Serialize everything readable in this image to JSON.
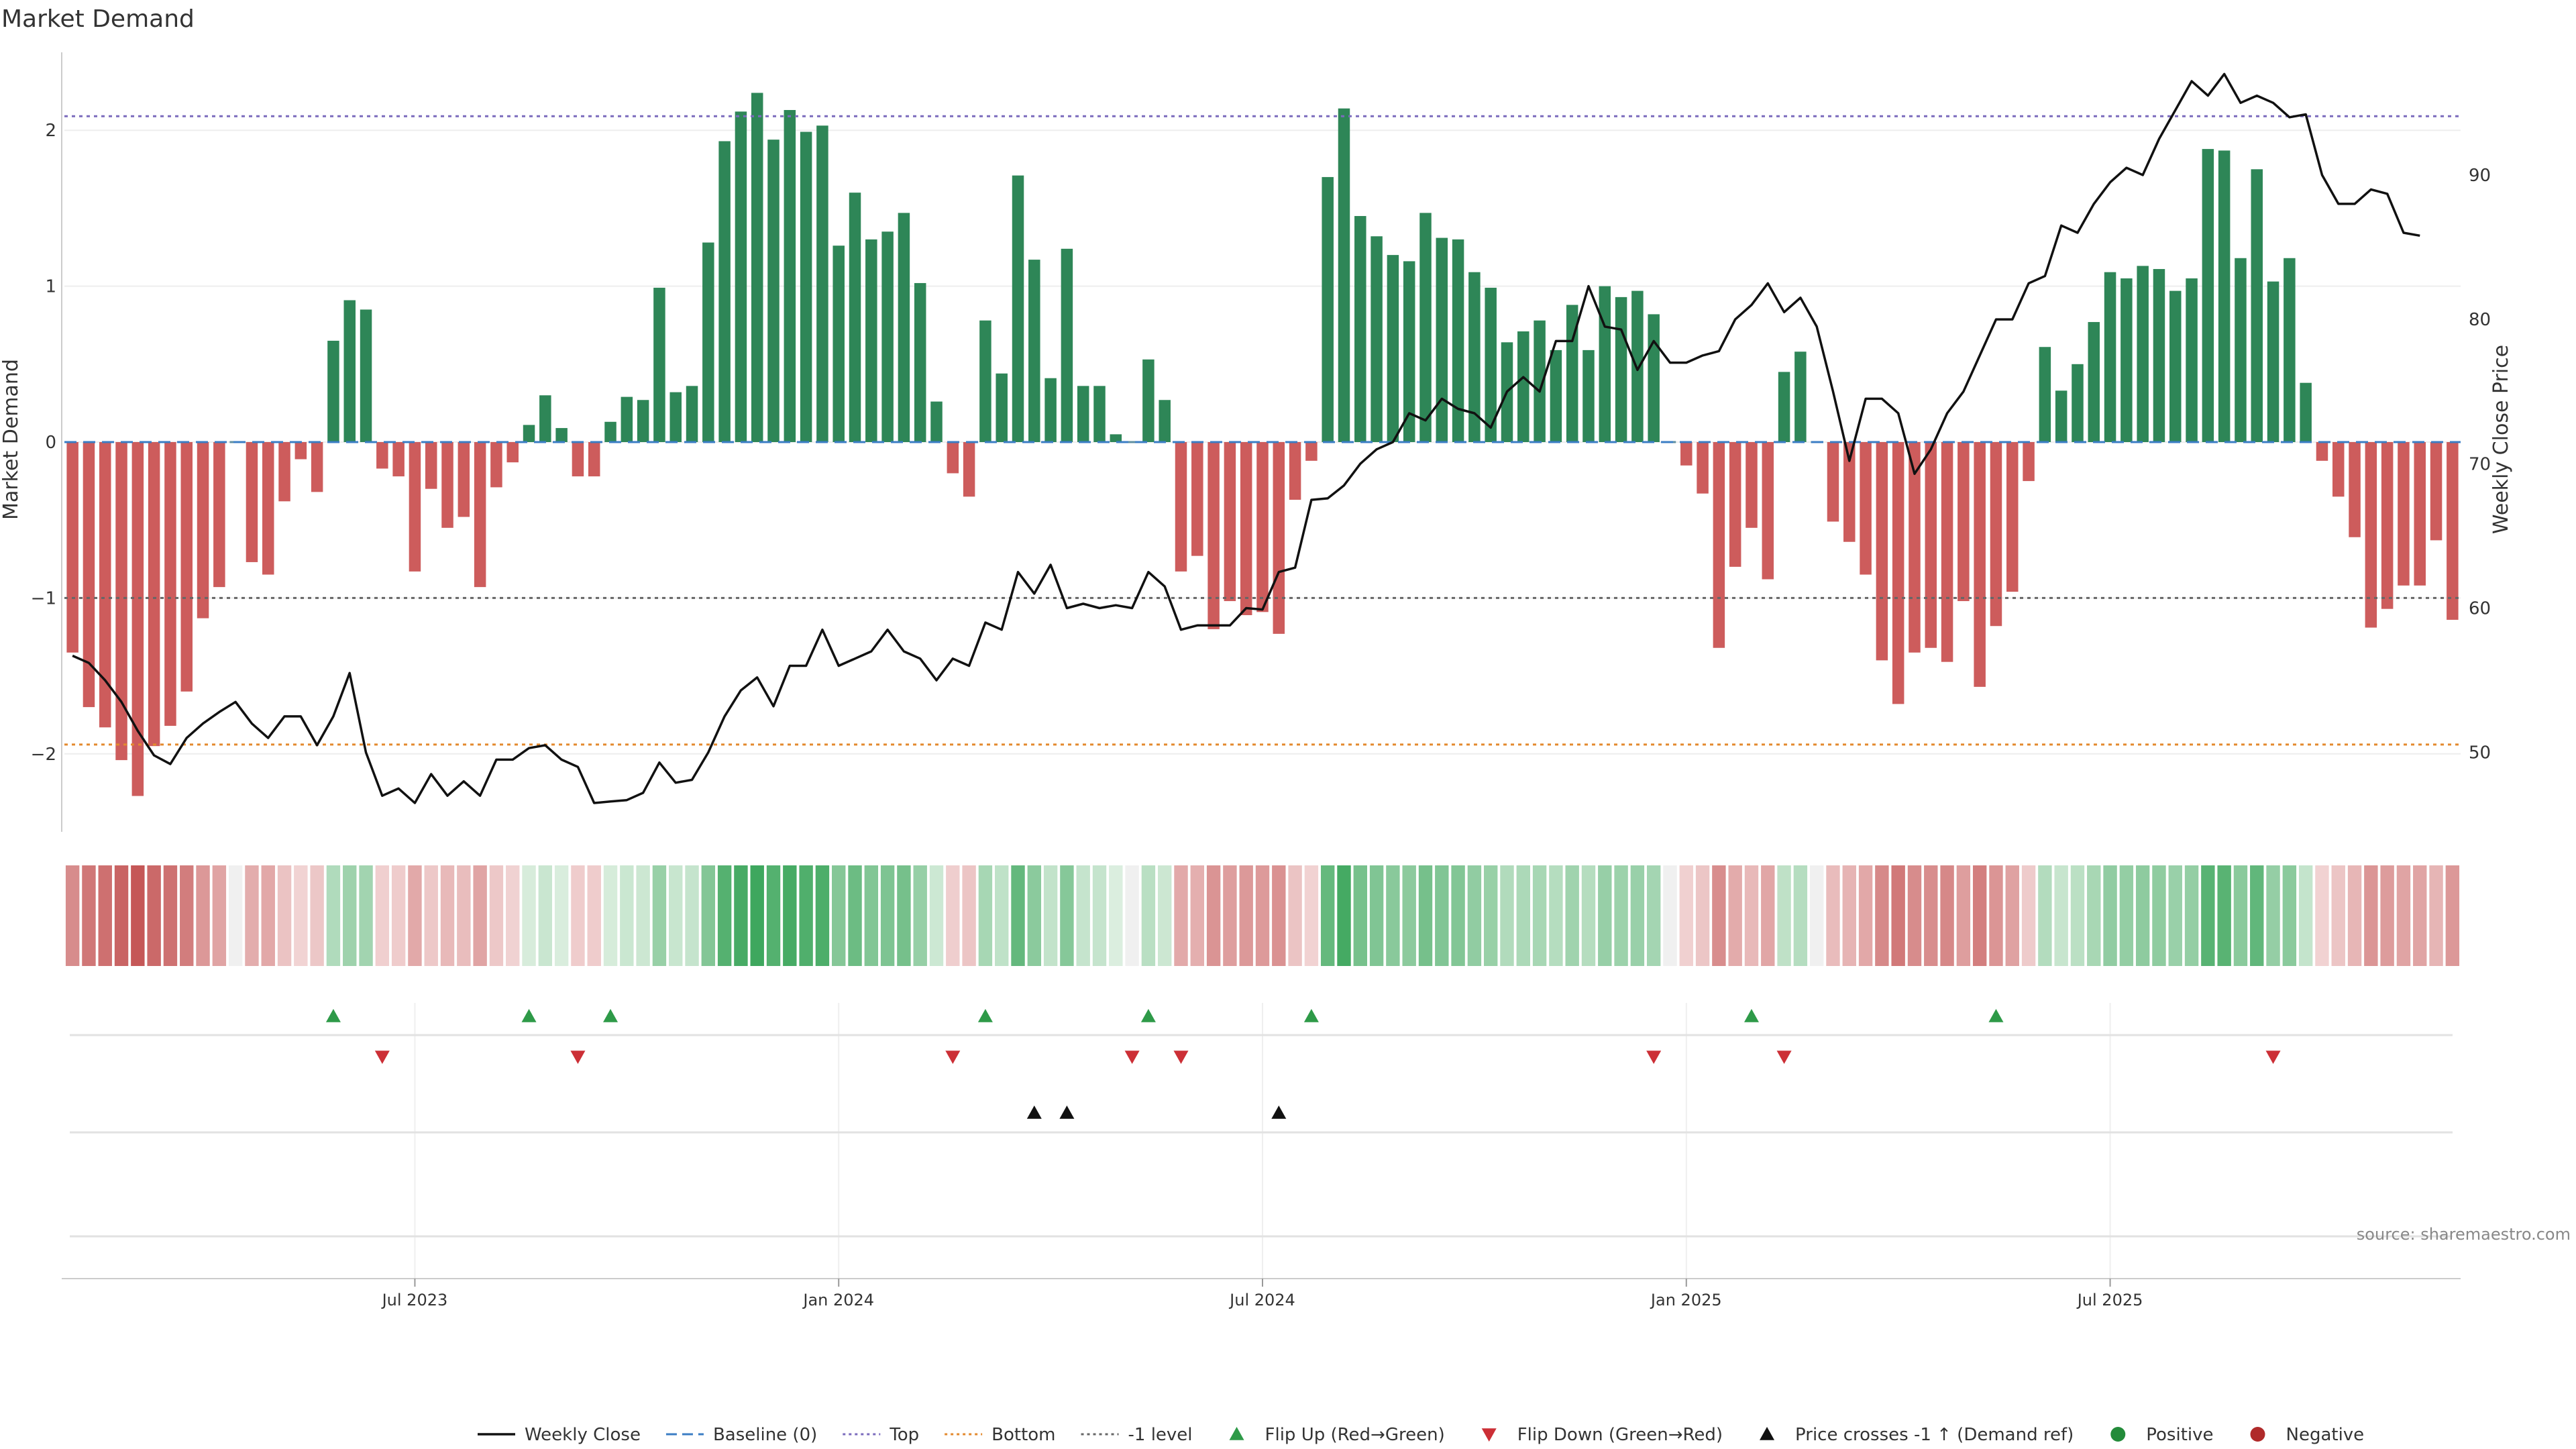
{
  "chart_data": {
    "type": "bar",
    "title": "Market Demand",
    "ylabel_left": "Market Demand",
    "ylabel_right": "Weekly Close Price",
    "source": "source: sharemaestro.com",
    "y_left_range": [
      -2.5,
      2.5
    ],
    "y_left_ticks": [
      "2",
      "1",
      "0",
      "−1",
      "−2"
    ],
    "y_left_tick_values": [
      2,
      1,
      0,
      -1,
      -2
    ],
    "y_right_range": [
      44.5,
      98.5
    ],
    "y_right_ticks": [
      "90",
      "80",
      "70",
      "60",
      "50"
    ],
    "y_right_tick_values": [
      90,
      80,
      70,
      60,
      50
    ],
    "x_ticks": [
      "Jul 2023",
      "Jan 2024",
      "Jul 2024",
      "Jan 2025",
      "Jul 2025"
    ],
    "x_tick_week_index": [
      21.5,
      47.5,
      73.5,
      99.5,
      125.5
    ],
    "reference_lines": {
      "top": 2.09,
      "bottom": -1.94,
      "minus_one": -1.0,
      "baseline": 0
    },
    "demand": [
      -1.35,
      -1.7,
      -1.83,
      -2.04,
      -2.27,
      -1.95,
      -1.82,
      -1.6,
      -1.13,
      -0.93,
      0,
      -0.77,
      -0.85,
      -0.38,
      -0.11,
      -0.32,
      0.65,
      0.91,
      0.85,
      -0.17,
      -0.22,
      -0.83,
      -0.3,
      -0.55,
      -0.48,
      -0.93,
      -0.29,
      -0.13,
      0.11,
      0.3,
      0.09,
      -0.22,
      -0.22,
      0.13,
      0.29,
      0.27,
      0.99,
      0.32,
      0.36,
      1.28,
      1.93,
      2.12,
      2.24,
      1.94,
      2.13,
      1.99,
      2.03,
      1.26,
      1.6,
      1.3,
      1.35,
      1.47,
      1.02,
      0.26,
      -0.2,
      -0.35,
      0.78,
      0.44,
      1.71,
      1.17,
      0.41,
      1.24,
      0.36,
      0.36,
      0.05,
      0,
      0.53,
      0.27,
      -0.83,
      -0.73,
      -1.2,
      -1.02,
      -1.11,
      -1.09,
      -1.23,
      -0.37,
      -0.12,
      1.7,
      2.14,
      1.45,
      1.32,
      1.2,
      1.16,
      1.47,
      1.31,
      1.3,
      1.09,
      0.99,
      0.64,
      0.71,
      0.78,
      0.59,
      0.88,
      0.59,
      1.0,
      0.93,
      0.97,
      0.82,
      0,
      -0.15,
      -0.33,
      -1.32,
      -0.8,
      -0.55,
      -0.88,
      0.45,
      0.58,
      0,
      -0.51,
      -0.64,
      -0.85,
      -1.4,
      -1.68,
      -1.35,
      -1.32,
      -1.41,
      -1.02,
      -1.57,
      -1.18,
      -0.96,
      -0.25,
      0.61,
      0.33,
      0.5,
      0.77,
      1.09,
      1.05,
      1.13,
      1.11,
      0.97,
      1.05,
      1.88,
      1.87,
      1.18,
      1.75,
      1.03,
      1.18,
      0.38,
      -0.12,
      -0.35,
      -0.61,
      -1.19,
      -1.07,
      -0.92,
      -0.92,
      -0.63,
      -1.14
    ],
    "weekly_close": [
      56.7,
      56.2,
      55.0,
      53.5,
      51.5,
      49.8,
      49.2,
      51.0,
      52.0,
      52.8,
      53.5,
      52.0,
      51.0,
      52.5,
      52.5,
      50.5,
      52.5,
      55.5,
      50.0,
      47.0,
      47.5,
      46.5,
      48.5,
      47.0,
      48.0,
      47.0,
      49.5,
      49.5,
      50.3,
      50.5,
      49.5,
      49.0,
      46.5,
      46.6,
      46.7,
      47.2,
      49.3,
      47.9,
      48.1,
      50.0,
      52.5,
      54.3,
      55.2,
      53.2,
      56.0,
      56.0,
      58.5,
      56.0,
      56.5,
      57.0,
      58.5,
      57.0,
      56.5,
      55.0,
      56.5,
      56.0,
      59.0,
      58.5,
      62.5,
      61.0,
      63.0,
      60.0,
      60.3,
      60.0,
      60.2,
      60.0,
      62.5,
      61.5,
      58.5,
      58.8,
      58.8,
      58.8,
      60.0,
      59.9,
      62.5,
      62.8,
      67.5,
      67.6,
      68.5,
      70.0,
      71.0,
      71.5,
      73.5,
      73.0,
      74.5,
      73.8,
      73.5,
      72.5,
      75.0,
      76.0,
      75.0,
      78.5,
      78.5,
      82.3,
      79.5,
      79.3,
      76.5,
      78.5,
      77.0,
      77.0,
      77.5,
      77.8,
      80.0,
      81.0,
      82.5,
      80.5,
      81.5,
      79.5,
      75.0,
      70.2,
      74.5,
      74.5,
      73.5,
      69.3,
      71.0,
      73.5,
      75.0,
      77.5,
      80.0,
      80.0,
      82.5,
      83.0,
      86.5,
      86.0,
      88.0,
      89.5,
      90.5,
      90.0,
      92.5,
      94.5,
      96.5,
      95.5,
      97.0,
      95.0,
      95.5,
      95.0,
      94.0,
      94.2,
      90.0,
      88.0,
      88.0,
      89.0,
      88.7,
      86.0,
      85.8
    ],
    "flip_up_weeks": [
      16,
      28,
      33,
      56,
      66,
      76,
      103,
      118
    ],
    "flip_down_weeks": [
      19,
      31,
      54,
      65,
      68,
      97,
      105,
      135
    ],
    "price_cross_weeks": [
      59,
      61,
      74
    ],
    "legend": [
      {
        "label": "Weekly Close",
        "symbol": "line",
        "color": "#111111"
      },
      {
        "label": "Baseline (0)",
        "symbol": "dash",
        "color": "#3b7dc4"
      },
      {
        "label": "Top",
        "symbol": "dot",
        "color": "#7b6bbd"
      },
      {
        "label": "Bottom",
        "symbol": "dot",
        "color": "#e38a2e"
      },
      {
        "label": "-1 level",
        "symbol": "dot",
        "color": "#666666"
      },
      {
        "label": "Flip Up (Red→Green)",
        "symbol": "tri-up",
        "color": "#2e9a48"
      },
      {
        "label": "Flip Down (Green→Red)",
        "symbol": "tri-down",
        "color": "#cc2f36"
      },
      {
        "label": "Price crosses -1 ↑ (Demand ref)",
        "symbol": "tri-up",
        "color": "#111111"
      },
      {
        "label": "Positive",
        "symbol": "circle",
        "color": "#238b3a"
      },
      {
        "label": "Negative",
        "symbol": "circle",
        "color": "#b02a2a"
      }
    ],
    "colors": {
      "positive": "#2e8657",
      "negative": "#cd5c5c",
      "line": "#111111",
      "grid": "#eeeeee",
      "axis": "#cccccc"
    }
  }
}
